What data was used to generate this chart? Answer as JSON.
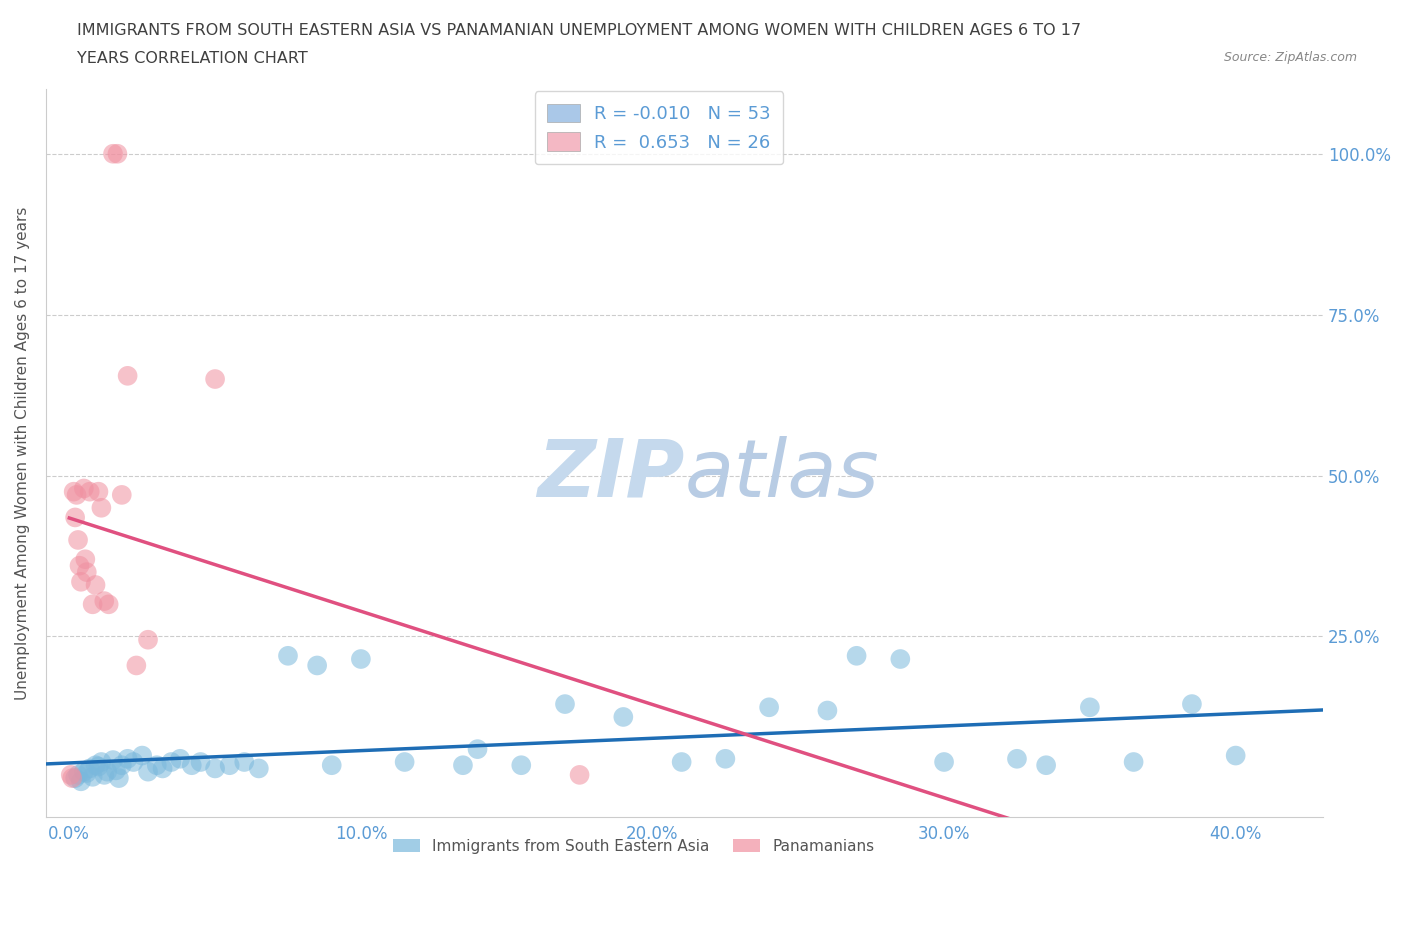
{
  "title_line1": "IMMIGRANTS FROM SOUTH EASTERN ASIA VS PANAMANIAN UNEMPLOYMENT AMONG WOMEN WITH CHILDREN AGES 6 TO 17",
  "title_line2": "YEARS CORRELATION CHART",
  "source": "Source: ZipAtlas.com",
  "ylabel": "Unemployment Among Women with Children Ages 6 to 17 years",
  "xticklabels": [
    "0.0%",
    "10.0%",
    "20.0%",
    "30.0%",
    "40.0%"
  ],
  "xticks": [
    0.0,
    10.0,
    20.0,
    30.0,
    40.0
  ],
  "yticklabels": [
    "25.0%",
    "50.0%",
    "75.0%",
    "100.0%"
  ],
  "yticks": [
    25.0,
    50.0,
    75.0,
    100.0
  ],
  "xlim": [
    -0.8,
    43
  ],
  "ylim": [
    -3,
    110
  ],
  "legend_r_blue": "R = -0.010",
  "legend_n_blue": "N = 53",
  "legend_r_pink": "R =  0.653",
  "legend_n_pink": "N = 26",
  "blue_scatter_x": [
    0.2,
    0.3,
    0.4,
    0.5,
    0.6,
    0.7,
    0.8,
    0.9,
    1.0,
    1.1,
    1.2,
    1.3,
    1.5,
    1.6,
    1.7,
    1.8,
    2.0,
    2.2,
    2.5,
    2.7,
    3.0,
    3.2,
    3.5,
    3.8,
    4.2,
    4.5,
    5.0,
    5.5,
    6.0,
    6.5,
    7.5,
    8.5,
    9.0,
    10.0,
    11.5,
    13.5,
    14.0,
    15.5,
    17.0,
    19.0,
    21.0,
    22.5,
    24.0,
    26.0,
    27.0,
    28.5,
    30.0,
    32.5,
    33.5,
    35.0,
    36.5,
    38.5,
    40.0
  ],
  "blue_scatter_y": [
    3.0,
    3.5,
    2.5,
    4.0,
    3.8,
    4.5,
    3.2,
    5.0,
    4.8,
    5.5,
    3.5,
    4.0,
    5.8,
    4.2,
    3.0,
    5.0,
    6.0,
    5.5,
    6.5,
    4.0,
    5.0,
    4.5,
    5.5,
    6.0,
    5.0,
    5.5,
    4.5,
    5.0,
    5.5,
    4.5,
    22.0,
    20.5,
    5.0,
    21.5,
    5.5,
    5.0,
    7.5,
    5.0,
    14.5,
    12.5,
    5.5,
    6.0,
    14.0,
    13.5,
    22.0,
    21.5,
    5.5,
    6.0,
    5.0,
    14.0,
    5.5,
    14.5,
    6.5
  ],
  "pink_scatter_x": [
    0.05,
    0.1,
    0.15,
    0.2,
    0.25,
    0.3,
    0.35,
    0.4,
    0.5,
    0.55,
    0.6,
    0.7,
    0.8,
    0.9,
    1.0,
    1.1,
    1.2,
    1.35,
    1.5,
    1.65,
    1.8,
    2.0,
    2.3,
    2.7,
    5.0,
    17.5
  ],
  "pink_scatter_y": [
    3.5,
    3.0,
    47.5,
    43.5,
    47.0,
    40.0,
    36.0,
    33.5,
    48.0,
    37.0,
    35.0,
    47.5,
    30.0,
    33.0,
    47.5,
    45.0,
    30.5,
    30.0,
    100.0,
    100.0,
    47.0,
    65.5,
    20.5,
    24.5,
    65.0,
    3.5
  ],
  "blue_line_color": "#1e6db5",
  "pink_line_color": "#e05080",
  "scatter_blue_color": "#7ab8dc",
  "scatter_pink_color": "#f090a0",
  "watermark_zip": "ZIP",
  "watermark_atlas": "atlas",
  "watermark_color_zip": "#c5d9ed",
  "watermark_color_atlas": "#b8cce4",
  "background_color": "#ffffff",
  "grid_color": "#cccccc",
  "title_color": "#404040",
  "axis_label_color": "#555555",
  "tick_label_color": "#5b9bd5",
  "right_tick_color": "#5b9bd5"
}
